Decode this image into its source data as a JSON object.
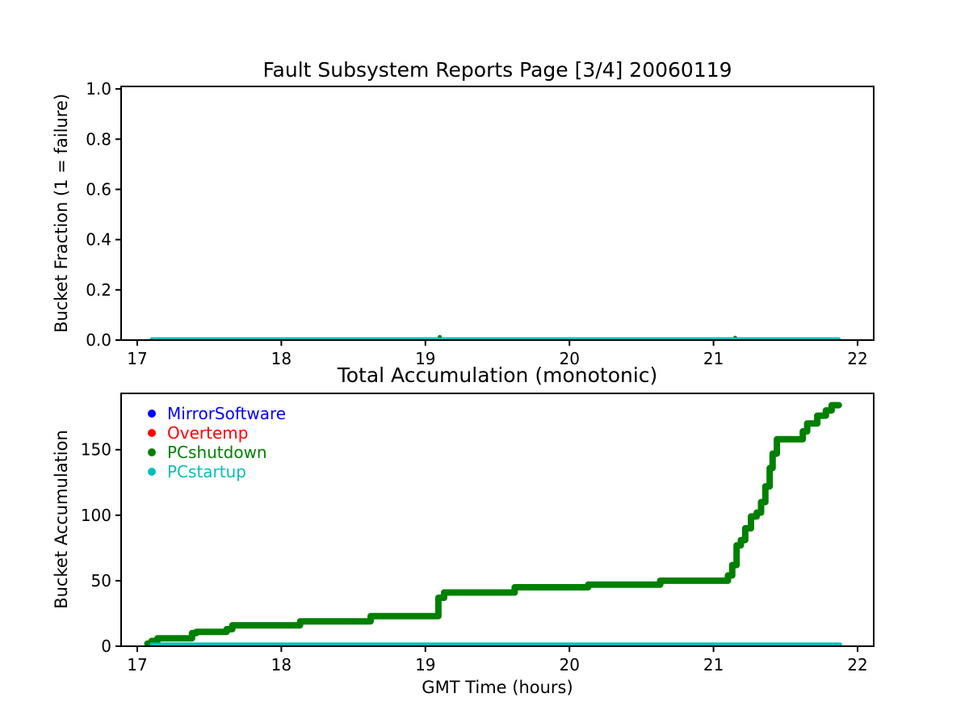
{
  "figure": {
    "background": "#ffffff",
    "axis_color": "#000000"
  },
  "legend": {
    "items": [
      {
        "label": "MirrorSoftware",
        "color": "#0000ff"
      },
      {
        "label": "Overtemp",
        "color": "#ff0000"
      },
      {
        "label": "PCshutdown",
        "color": "#008000"
      },
      {
        "label": "PCstartup",
        "color": "#00bfbf"
      }
    ]
  },
  "chart_data": [
    {
      "type": "line",
      "title": "Fault Subsystem Reports Page [3/4] 20060119",
      "xlabel": "",
      "ylabel": "Bucket Fraction (1 = failure)",
      "xlim": [
        16.888,
        22.112
      ],
      "ylim": [
        0,
        1.01
      ],
      "xticks": [
        17,
        18,
        19,
        20,
        21,
        22
      ],
      "xtick_labels": [
        "17",
        "18",
        "19",
        "20",
        "21",
        "22"
      ],
      "yticks": [
        0.0,
        0.2,
        0.4,
        0.6,
        0.8,
        1.0
      ],
      "ytick_labels": [
        "0.0",
        "0.2",
        "0.4",
        "0.6",
        "0.8",
        "1.0"
      ],
      "grid": false,
      "legend_position": "none",
      "series": [
        {
          "name": "PCshutdown",
          "color": "#008000",
          "style": "dots",
          "radius": 2.6,
          "points": [
            [
              19.1,
              0.012
            ],
            [
              21.15,
              0.009
            ]
          ]
        },
        {
          "name": "PCstartup",
          "color": "#00bfbf",
          "style": "line",
          "width": 4.5,
          "points": [
            [
              17.1,
              0.004
            ],
            [
              21.87,
              0.004
            ]
          ]
        }
      ]
    },
    {
      "type": "line",
      "title": "Total Accumulation (monotonic)",
      "xlabel": "GMT Time (hours)",
      "ylabel": "Bucket Accumulation",
      "xlim": [
        16.888,
        22.112
      ],
      "ylim": [
        0,
        193
      ],
      "xticks": [
        17,
        18,
        19,
        20,
        21,
        22
      ],
      "xtick_labels": [
        "17",
        "18",
        "19",
        "20",
        "21",
        "22"
      ],
      "yticks": [
        0,
        50,
        100,
        150
      ],
      "ytick_labels": [
        "0",
        "50",
        "100",
        "150"
      ],
      "grid": false,
      "legend_position": "upper-left",
      "series": [
        {
          "name": "PCshutdown",
          "color": "#008000",
          "style": "step",
          "width": 8,
          "points": [
            [
              17.07,
              2
            ],
            [
              17.1,
              4
            ],
            [
              17.14,
              6
            ],
            [
              17.38,
              10
            ],
            [
              17.41,
              11
            ],
            [
              17.62,
              13
            ],
            [
              17.66,
              16
            ],
            [
              18.13,
              19
            ],
            [
              18.62,
              23
            ],
            [
              19.09,
              37
            ],
            [
              19.13,
              41
            ],
            [
              19.62,
              45
            ],
            [
              20.13,
              47
            ],
            [
              20.63,
              50
            ],
            [
              21.1,
              54
            ],
            [
              21.13,
              62
            ],
            [
              21.16,
              77
            ],
            [
              21.19,
              81
            ],
            [
              21.22,
              90
            ],
            [
              21.26,
              99
            ],
            [
              21.3,
              102
            ],
            [
              21.33,
              110
            ],
            [
              21.36,
              122
            ],
            [
              21.39,
              136
            ],
            [
              21.41,
              147
            ],
            [
              21.44,
              158
            ],
            [
              21.62,
              164
            ],
            [
              21.65,
              170
            ],
            [
              21.72,
              176
            ],
            [
              21.78,
              180
            ],
            [
              21.82,
              184
            ],
            [
              21.87,
              184
            ]
          ]
        },
        {
          "name": "PCstartup",
          "color": "#00bfbf",
          "style": "line",
          "width": 4.5,
          "points": [
            [
              17.1,
              1.5
            ],
            [
              21.88,
              1.5
            ]
          ]
        }
      ]
    }
  ]
}
